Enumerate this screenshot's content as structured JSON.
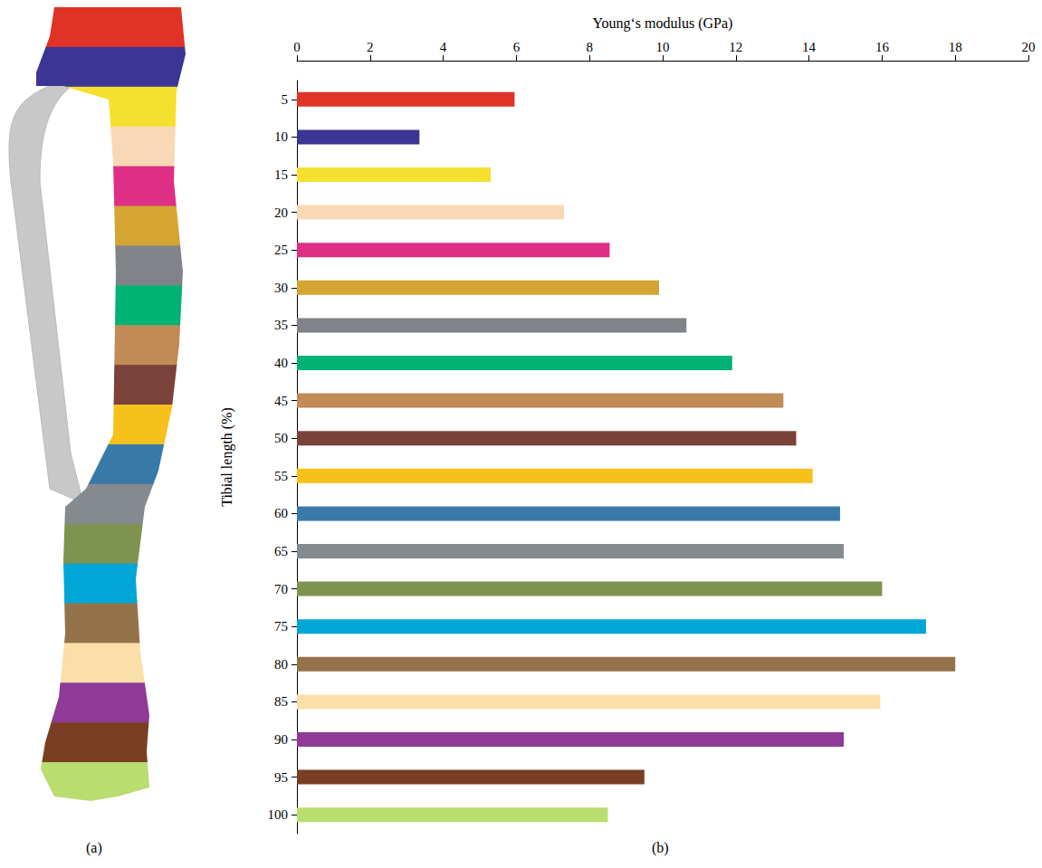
{
  "illustration": {
    "label": "(a)"
  },
  "chart_data": {
    "type": "bar",
    "orientation": "horizontal",
    "panel_label": "(b)",
    "x_label": "Young‘s modulus (GPa)",
    "y_label": "Tibial length (%)",
    "categories": [
      "5",
      "10",
      "15",
      "20",
      "25",
      "30",
      "35",
      "40",
      "45",
      "50",
      "55",
      "60",
      "65",
      "70",
      "75",
      "80",
      "85",
      "90",
      "95",
      "100"
    ],
    "values": [
      5.95,
      3.35,
      5.3,
      7.3,
      8.55,
      9.9,
      10.65,
      11.9,
      13.3,
      13.65,
      14.1,
      14.85,
      14.95,
      16.0,
      17.2,
      18.0,
      15.95,
      14.95,
      9.5,
      8.5
    ],
    "colors": [
      "#e03226",
      "#3d3594",
      "#f5e030",
      "#f9d8b6",
      "#df2e85",
      "#d4a532",
      "#808488",
      "#00b274",
      "#c08b57",
      "#7a4238",
      "#f5c11a",
      "#3979a8",
      "#858a8e",
      "#7f9350",
      "#00a6d6",
      "#95734a",
      "#fbdfa8",
      "#8e3a96",
      "#7a3f22",
      "#b9dd6e"
    ],
    "xlim": [
      0,
      20
    ],
    "xticks": [
      0,
      2,
      4,
      6,
      8,
      10,
      12,
      14,
      16,
      18,
      20
    ],
    "grid": false,
    "data_labels": false
  }
}
